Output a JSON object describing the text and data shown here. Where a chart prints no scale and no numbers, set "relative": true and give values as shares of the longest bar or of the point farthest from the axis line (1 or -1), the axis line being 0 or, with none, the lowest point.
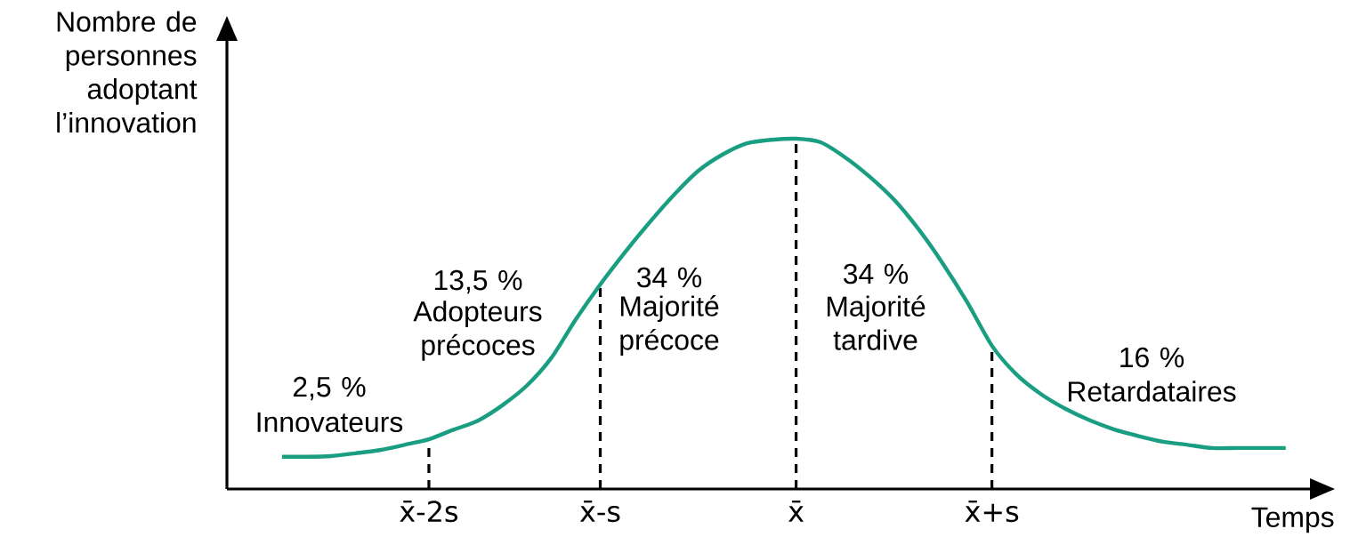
{
  "chart_data": {
    "type": "line",
    "relative": true,
    "xlabel": "Temps",
    "ylabel": "Nombre de personnes adoptant l’innovation",
    "categories": [
      null,
      null,
      null,
      null,
      null,
      null,
      "x̄-2s",
      null,
      null,
      null,
      null,
      null,
      null,
      "x̄-s",
      null,
      null,
      null,
      null,
      null,
      null,
      null,
      "x̄",
      null,
      null,
      null,
      null,
      null,
      null,
      null,
      "x̄+s",
      null,
      null,
      null,
      null,
      null,
      null,
      null,
      null,
      null,
      null,
      null,
      null
    ],
    "values": [
      0.092,
      0.092,
      0.094,
      0.102,
      0.111,
      0.126,
      0.142,
      0.169,
      0.195,
      0.239,
      0.295,
      0.374,
      0.484,
      0.584,
      0.675,
      0.76,
      0.839,
      0.908,
      0.955,
      0.987,
      0.997,
      1.0,
      0.99,
      0.947,
      0.892,
      0.826,
      0.742,
      0.643,
      0.532,
      0.409,
      0.327,
      0.271,
      0.229,
      0.196,
      0.17,
      0.151,
      0.135,
      0.126,
      0.117,
      0.117,
      0.117,
      0.117
    ],
    "color": "#1a9e82",
    "marker": "none",
    "line_style": "solid",
    "ref_lines": [
      {
        "axis": "x",
        "value": "x̄-2s",
        "color": "#000000",
        "line_style": "dashed"
      },
      {
        "axis": "x",
        "value": "x̄-s",
        "color": "#000000",
        "line_style": "dashed"
      },
      {
        "axis": "x",
        "value": "x̄",
        "color": "#000000",
        "line_style": "dashed"
      },
      {
        "axis": "x",
        "value": "x̄+s",
        "color": "#000000",
        "line_style": "dashed"
      }
    ],
    "annotations": [
      "2,5 %",
      "Innovateurs",
      "13,5 %",
      "Adopteurs précoces",
      "34 %",
      "Majorité précoce",
      "34 %",
      "Majorité tardive",
      "16 %",
      "Retardataires"
    ]
  }
}
